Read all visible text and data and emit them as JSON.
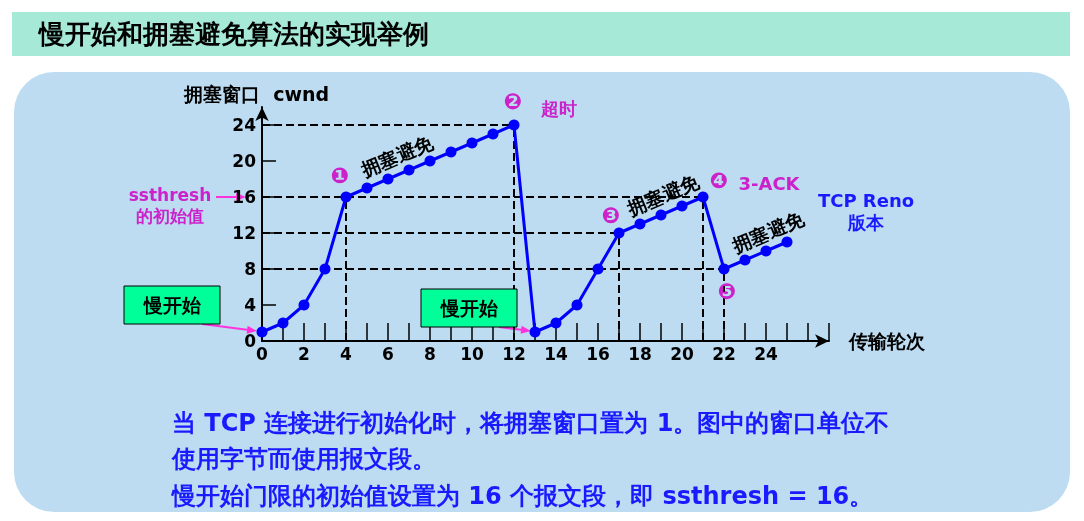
{
  "chart_data": {
    "type": "line",
    "title": "慢开始和拥塞避免算法的实现举例",
    "ylabel": "拥塞窗口  cwnd",
    "xlabel": "传输轮次",
    "x": [
      0,
      1,
      2,
      3,
      4,
      5,
      6,
      7,
      8,
      9,
      10,
      11,
      12,
      13,
      14,
      15,
      16,
      17,
      18,
      19,
      20,
      21,
      22,
      23,
      24,
      25
    ],
    "series": [
      {
        "color": "#0000ff",
        "values": [
          1,
          2,
          4,
          8,
          16,
          17,
          18,
          19,
          20,
          21,
          22,
          23,
          24,
          1,
          2,
          4,
          8,
          12,
          13,
          14,
          15,
          16,
          8,
          9,
          10,
          11
        ]
      }
    ],
    "xlim": [
      0,
      27
    ],
    "ylim": [
      0,
      26
    ],
    "xticks": [
      0,
      2,
      4,
      6,
      8,
      10,
      12,
      14,
      16,
      18,
      20,
      22,
      24
    ],
    "yticks": [
      0,
      4,
      8,
      12,
      16,
      20,
      24
    ],
    "ref_lines": [
      {
        "axis": "y",
        "value": 24,
        "color": "#000000",
        "line_style": "dashed"
      },
      {
        "axis": "y",
        "value": 16,
        "color": "#000000",
        "line_style": "dashed"
      },
      {
        "axis": "y",
        "value": 12,
        "color": "#000000",
        "line_style": "dashed"
      },
      {
        "axis": "y",
        "value": 8,
        "color": "#000000",
        "line_style": "dashed"
      },
      {
        "axis": "x",
        "value": 4,
        "color": "#000000",
        "line_style": "dashed"
      },
      {
        "axis": "x",
        "value": 12,
        "color": "#000000",
        "line_style": "dashed"
      },
      {
        "axis": "x",
        "value": 17,
        "color": "#000000",
        "line_style": "dashed"
      },
      {
        "axis": "x",
        "value": 21,
        "color": "#000000",
        "line_style": "dashed"
      },
      {
        "axis": "x",
        "value": 22,
        "color": "#000000",
        "line_style": "dashed"
      }
    ],
    "annotations": [
      {
        "text": "❶",
        "x": 4,
        "y": 16
      },
      {
        "text": "拥塞避免",
        "x": 7,
        "y": 19
      },
      {
        "text": "❷",
        "x": 12,
        "y": 24
      },
      {
        "text": "超时",
        "x": 12,
        "y": 24
      },
      {
        "text": "❸",
        "x": 17,
        "y": 12
      },
      {
        "text": "拥塞避免",
        "x": 19,
        "y": 14
      },
      {
        "text": "❹",
        "x": 21,
        "y": 16
      },
      {
        "text": "3-ACK",
        "x": 21,
        "y": 16
      },
      {
        "text": "❺",
        "x": 22,
        "y": 8
      },
      {
        "text": "拥塞避免",
        "x": 24,
        "y": 10
      },
      "TCP Reno\n版本",
      "ssthresh\n的初始值",
      "慢开始",
      {
        "text": "慢开始",
        "x": 13,
        "y": 1
      },
      "当 TCP 连接进行初始化时，将拥塞窗口置为 1。图中的窗口单位不使用字节而使用报文段。",
      "慢开始门限的初始值设置为 16 个报文段，即 ssthresh = 16。"
    ],
    "grid": false,
    "marker": "circle",
    "line_style": "solid"
  }
}
